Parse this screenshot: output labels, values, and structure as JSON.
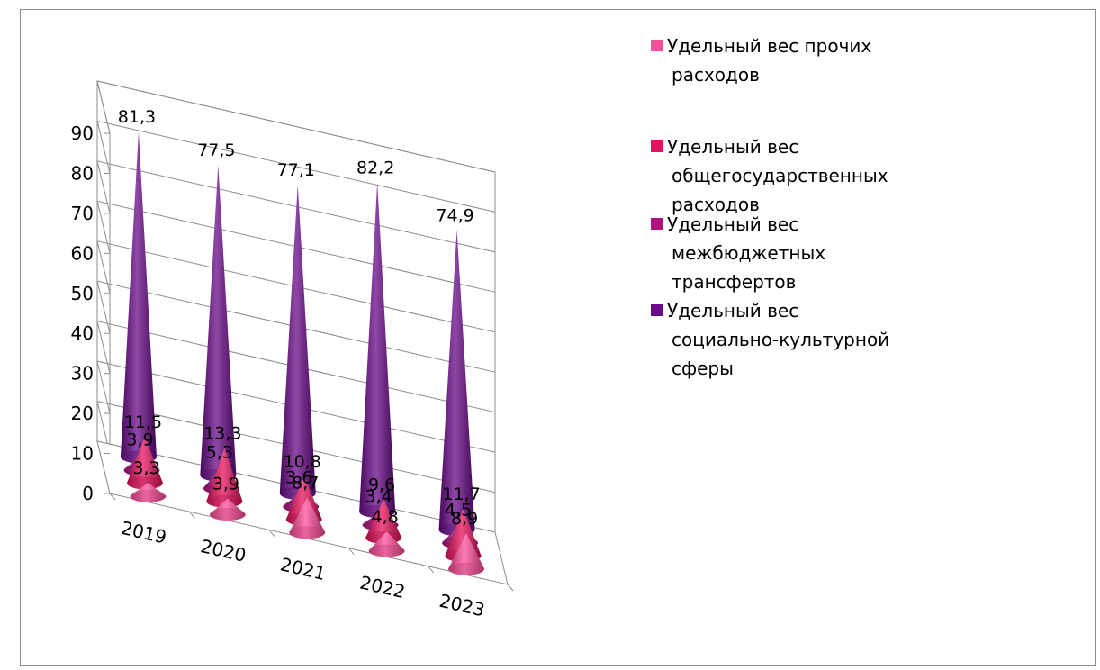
{
  "chart_data": {
    "type": "bar",
    "title": "",
    "ylim": [
      0,
      90
    ],
    "yticks": [
      "0",
      "10",
      "20",
      "30",
      "40",
      "50",
      "60",
      "70",
      "80",
      "90"
    ],
    "categories": [
      "2019",
      "2020",
      "2021",
      "2022",
      "2023"
    ],
    "grid": true,
    "legend_position": "right",
    "series": [
      {
        "name": "Удельный вес прочих расходов",
        "legend_lines": [
          "Удельный вес прочих",
          "расходов"
        ],
        "color": "#ff4f9b",
        "values": [
          3.3,
          3.9,
          8.7,
          4.8,
          8.9
        ],
        "labels": [
          "3,3",
          "3,9",
          "8,7",
          "4,8",
          "8,9"
        ]
      },
      {
        "name": "Удельный вес общегосударственных расходов",
        "legend_lines": [
          "Удельный вес",
          "общегосударственных",
          "расходов"
        ],
        "color": "#e8115e",
        "values": [
          11.5,
          13.3,
          10.8,
          9.6,
          11.7
        ],
        "labels": [
          "11,5",
          "13,3",
          "10,8",
          "9,6",
          "11,7"
        ]
      },
      {
        "name": "Удельный вес межбюджетных трансфертов",
        "legend_lines": [
          "Удельный вес",
          "межбюджетных",
          "трансфертов"
        ],
        "color": "#b0127f",
        "values": [
          3.9,
          5.3,
          3.6,
          3.4,
          4.5
        ],
        "labels": [
          "3,9",
          "5,3",
          "3,6",
          "3,4",
          "4,5"
        ]
      },
      {
        "name": "Удельный вес социально-культурной сферы",
        "legend_lines": [
          "Удельный вес",
          "социально-культурной",
          "сферы"
        ],
        "color": "#6a0a8a",
        "values": [
          81.3,
          77.5,
          77.1,
          82.2,
          74.9
        ],
        "labels": [
          "81,3",
          "77,5",
          "77,1",
          "82,2",
          "74,9"
        ]
      }
    ]
  }
}
